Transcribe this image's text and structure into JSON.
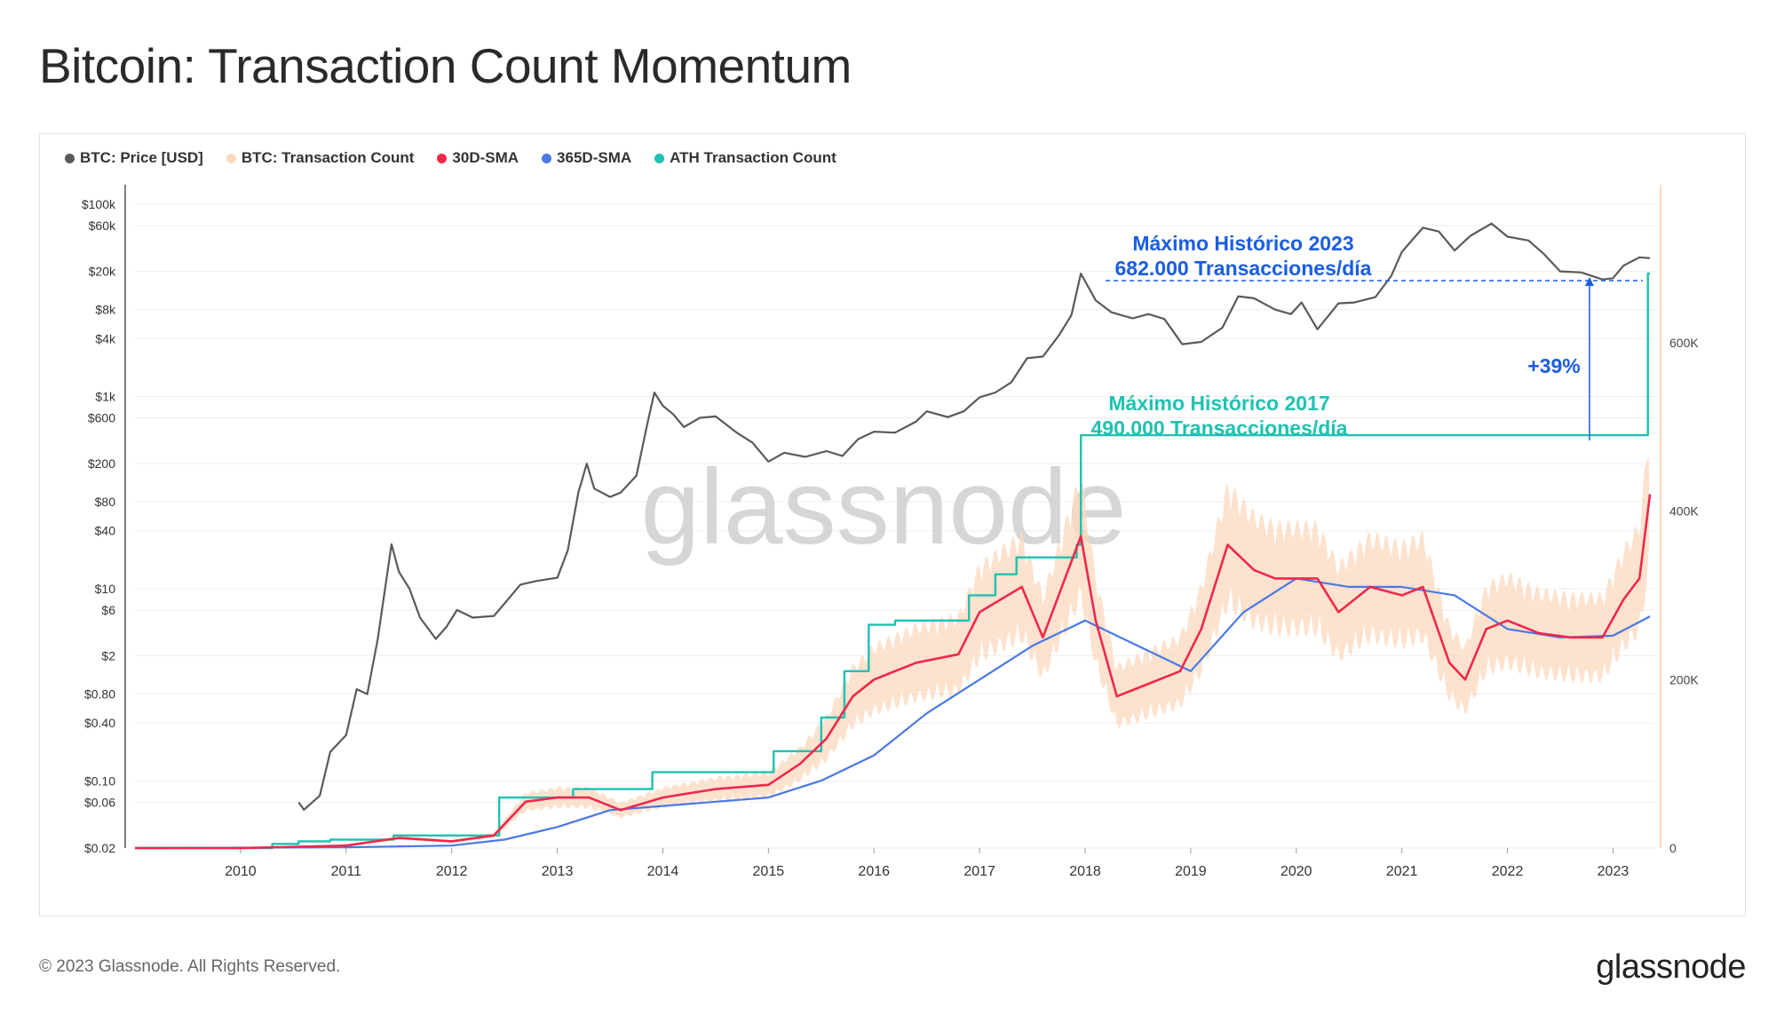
{
  "title": "Bitcoin: Transaction Count Momentum",
  "footer": "© 2023 Glassnode. All Rights Reserved.",
  "brand": "glassnode",
  "watermark": "glassnode",
  "legend": [
    {
      "label": "BTC: Price [USD]",
      "color": "#5a5a5a"
    },
    {
      "label": "BTC: Transaction Count",
      "color": "#fcd8bd"
    },
    {
      "label": "30D-SMA",
      "color": "#f0284a"
    },
    {
      "label": "365D-SMA",
      "color": "#4a78e6"
    },
    {
      "label": "ATH Transaction Count",
      "color": "#1fc1b1"
    }
  ],
  "annotations": {
    "ath2023_line1": "Máximo Histórico 2023",
    "ath2023_line2": "682.000 Transacciones/día",
    "ath2017_line1": "Máximo Histórico 2017",
    "ath2017_line2": "490.000 Transacciones/día",
    "change": "+39%"
  },
  "chart_data": {
    "type": "line",
    "title": "Bitcoin: Transaction Count Momentum",
    "x_ticks": [
      "2010",
      "2011",
      "2012",
      "2013",
      "2014",
      "2015",
      "2016",
      "2017",
      "2018",
      "2019",
      "2020",
      "2021",
      "2022",
      "2023"
    ],
    "y_left_ticks": [
      "$100k",
      "$60k",
      "$20k",
      "$8k",
      "$4k",
      "$1k",
      "$600",
      "$200",
      "$80",
      "$40",
      "$10",
      "$6",
      "$2",
      "$0.80",
      "$0.40",
      "$0.10",
      "$0.06",
      "$0.02"
    ],
    "y_right_ticks": [
      "600K",
      "400K",
      "200K",
      "0"
    ],
    "y_left_scale": "log",
    "y_right_range": [
      0,
      800000
    ],
    "x_range": [
      2009.0,
      2023.4
    ],
    "series": [
      {
        "name": "BTC: Price [USD]",
        "axis": "left",
        "points": [
          [
            2010.55,
            0.06
          ],
          [
            2010.6,
            0.05
          ],
          [
            2010.75,
            0.07
          ],
          [
            2010.85,
            0.2
          ],
          [
            2011.0,
            0.3
          ],
          [
            2011.1,
            0.9
          ],
          [
            2011.2,
            0.8
          ],
          [
            2011.3,
            3
          ],
          [
            2011.43,
            29
          ],
          [
            2011.5,
            15
          ],
          [
            2011.6,
            10
          ],
          [
            2011.7,
            5
          ],
          [
            2011.85,
            3
          ],
          [
            2011.95,
            4
          ],
          [
            2012.05,
            6
          ],
          [
            2012.2,
            5
          ],
          [
            2012.4,
            5.2
          ],
          [
            2012.5,
            7
          ],
          [
            2012.65,
            11
          ],
          [
            2012.8,
            12
          ],
          [
            2013.0,
            13
          ],
          [
            2013.1,
            25
          ],
          [
            2013.2,
            100
          ],
          [
            2013.28,
            200
          ],
          [
            2013.35,
            110
          ],
          [
            2013.5,
            90
          ],
          [
            2013.6,
            100
          ],
          [
            2013.75,
            150
          ],
          [
            2013.85,
            500
          ],
          [
            2013.92,
            1100
          ],
          [
            2014.0,
            800
          ],
          [
            2014.1,
            650
          ],
          [
            2014.2,
            480
          ],
          [
            2014.35,
            600
          ],
          [
            2014.5,
            620
          ],
          [
            2014.7,
            420
          ],
          [
            2014.85,
            330
          ],
          [
            2015.0,
            210
          ],
          [
            2015.15,
            260
          ],
          [
            2015.35,
            235
          ],
          [
            2015.55,
            270
          ],
          [
            2015.7,
            240
          ],
          [
            2015.85,
            360
          ],
          [
            2016.0,
            430
          ],
          [
            2016.2,
            420
          ],
          [
            2016.4,
            550
          ],
          [
            2016.5,
            700
          ],
          [
            2016.7,
            610
          ],
          [
            2016.85,
            700
          ],
          [
            2017.0,
            980
          ],
          [
            2017.15,
            1100
          ],
          [
            2017.3,
            1400
          ],
          [
            2017.45,
            2500
          ],
          [
            2017.6,
            2600
          ],
          [
            2017.75,
            4300
          ],
          [
            2017.87,
            7000
          ],
          [
            2017.96,
            19000
          ],
          [
            2018.1,
            10000
          ],
          [
            2018.25,
            7500
          ],
          [
            2018.45,
            6500
          ],
          [
            2018.6,
            7200
          ],
          [
            2018.75,
            6400
          ],
          [
            2018.92,
            3500
          ],
          [
            2019.1,
            3700
          ],
          [
            2019.3,
            5200
          ],
          [
            2019.45,
            11000
          ],
          [
            2019.6,
            10500
          ],
          [
            2019.8,
            8000
          ],
          [
            2019.95,
            7200
          ],
          [
            2020.05,
            9500
          ],
          [
            2020.2,
            5000
          ],
          [
            2020.4,
            9300
          ],
          [
            2020.55,
            9500
          ],
          [
            2020.75,
            10800
          ],
          [
            2020.9,
            18000
          ],
          [
            2021.0,
            32000
          ],
          [
            2021.2,
            57000
          ],
          [
            2021.35,
            52000
          ],
          [
            2021.5,
            33000
          ],
          [
            2021.65,
            47000
          ],
          [
            2021.85,
            63000
          ],
          [
            2022.0,
            46000
          ],
          [
            2022.2,
            42000
          ],
          [
            2022.35,
            30000
          ],
          [
            2022.5,
            20000
          ],
          [
            2022.7,
            19500
          ],
          [
            2022.9,
            16500
          ],
          [
            2023.0,
            17000
          ],
          [
            2023.1,
            23000
          ],
          [
            2023.25,
            28000
          ],
          [
            2023.35,
            27500
          ]
        ]
      },
      {
        "name": "30D-SMA",
        "axis": "right",
        "points": [
          [
            2009.0,
            0
          ],
          [
            2010.0,
            0
          ],
          [
            2011.0,
            3000
          ],
          [
            2011.5,
            12000
          ],
          [
            2012.0,
            8000
          ],
          [
            2012.4,
            15000
          ],
          [
            2012.7,
            55000
          ],
          [
            2013.0,
            60000
          ],
          [
            2013.3,
            60000
          ],
          [
            2013.6,
            45000
          ],
          [
            2014.0,
            60000
          ],
          [
            2014.5,
            70000
          ],
          [
            2015.0,
            75000
          ],
          [
            2015.3,
            100000
          ],
          [
            2015.55,
            130000
          ],
          [
            2015.8,
            180000
          ],
          [
            2016.0,
            200000
          ],
          [
            2016.4,
            220000
          ],
          [
            2016.8,
            230000
          ],
          [
            2017.0,
            280000
          ],
          [
            2017.4,
            310000
          ],
          [
            2017.6,
            250000
          ],
          [
            2017.96,
            370000
          ],
          [
            2018.1,
            270000
          ],
          [
            2018.3,
            180000
          ],
          [
            2018.6,
            195000
          ],
          [
            2018.9,
            210000
          ],
          [
            2019.1,
            260000
          ],
          [
            2019.35,
            360000
          ],
          [
            2019.6,
            330000
          ],
          [
            2019.8,
            320000
          ],
          [
            2020.0,
            320000
          ],
          [
            2020.2,
            320000
          ],
          [
            2020.4,
            280000
          ],
          [
            2020.7,
            310000
          ],
          [
            2021.0,
            300000
          ],
          [
            2021.2,
            310000
          ],
          [
            2021.45,
            220000
          ],
          [
            2021.6,
            200000
          ],
          [
            2021.8,
            260000
          ],
          [
            2022.0,
            270000
          ],
          [
            2022.3,
            255000
          ],
          [
            2022.6,
            250000
          ],
          [
            2022.9,
            250000
          ],
          [
            2023.1,
            295000
          ],
          [
            2023.25,
            320000
          ],
          [
            2023.35,
            420000
          ]
        ]
      },
      {
        "name": "365D-SMA",
        "axis": "right",
        "points": [
          [
            2009.0,
            0
          ],
          [
            2011.0,
            1000
          ],
          [
            2012.0,
            3000
          ],
          [
            2012.5,
            10000
          ],
          [
            2013.0,
            25000
          ],
          [
            2013.5,
            45000
          ],
          [
            2014.0,
            50000
          ],
          [
            2014.5,
            55000
          ],
          [
            2015.0,
            60000
          ],
          [
            2015.5,
            80000
          ],
          [
            2016.0,
            110000
          ],
          [
            2016.5,
            160000
          ],
          [
            2017.0,
            200000
          ],
          [
            2017.5,
            240000
          ],
          [
            2018.0,
            270000
          ],
          [
            2018.5,
            240000
          ],
          [
            2019.0,
            210000
          ],
          [
            2019.5,
            280000
          ],
          [
            2020.0,
            320000
          ],
          [
            2020.5,
            310000
          ],
          [
            2021.0,
            310000
          ],
          [
            2021.5,
            300000
          ],
          [
            2022.0,
            260000
          ],
          [
            2022.5,
            250000
          ],
          [
            2023.0,
            252000
          ],
          [
            2023.35,
            275000
          ]
        ]
      },
      {
        "name": "ATH Transaction Count",
        "axis": "right",
        "points": [
          [
            2009.0,
            0
          ],
          [
            2010.3,
            5000
          ],
          [
            2010.55,
            8000
          ],
          [
            2010.85,
            10000
          ],
          [
            2011.45,
            15000
          ],
          [
            2012.45,
            60000
          ],
          [
            2013.15,
            70000
          ],
          [
            2013.9,
            90000
          ],
          [
            2015.05,
            115000
          ],
          [
            2015.5,
            155000
          ],
          [
            2015.72,
            210000
          ],
          [
            2015.95,
            265000
          ],
          [
            2016.2,
            270000
          ],
          [
            2016.9,
            300000
          ],
          [
            2017.15,
            325000
          ],
          [
            2017.35,
            345000
          ],
          [
            2017.92,
            360000
          ],
          [
            2017.96,
            490000
          ],
          [
            2023.33,
            490000
          ],
          [
            2023.33,
            682000
          ],
          [
            2023.35,
            682000
          ]
        ]
      }
    ]
  }
}
